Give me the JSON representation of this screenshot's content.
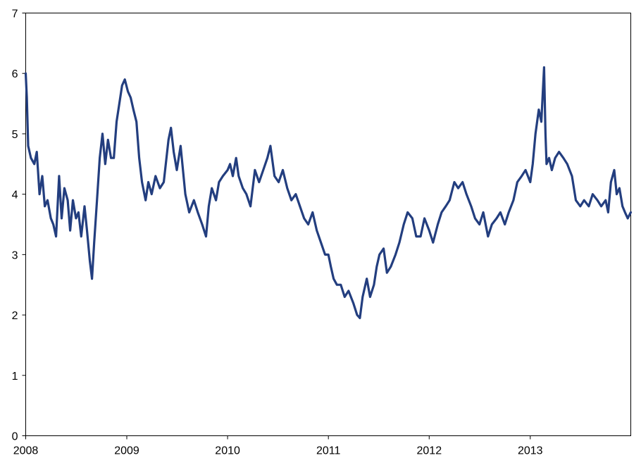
{
  "chart_data": {
    "type": "line",
    "title": "",
    "xlabel": "",
    "ylabel": "",
    "ylim": [
      0,
      7
    ],
    "xlim": [
      "2008-01-01",
      "2013-12-31"
    ],
    "y_ticks": [
      "0",
      "1",
      "2",
      "3",
      "4",
      "5",
      "6",
      "7"
    ],
    "x_ticks": [
      {
        "date": "2008-01-01",
        "label": "2008"
      },
      {
        "date": "2009-01-01",
        "label": "2009"
      },
      {
        "date": "2010-01-01",
        "label": "2010"
      },
      {
        "date": "2011-01-01",
        "label": "2011"
      },
      {
        "date": "2012-01-01",
        "label": "2012"
      },
      {
        "date": "2013-01-01",
        "label": "2013"
      }
    ],
    "grid": false,
    "legend": "none",
    "colors": {
      "series": "#233e7f"
    },
    "series": [
      {
        "x": [
          "2008-01-01",
          "2008-01-05",
          "2008-01-10",
          "2008-01-20",
          "2008-02-01",
          "2008-02-10",
          "2008-02-20",
          "2008-03-01",
          "2008-03-10",
          "2008-03-20",
          "2008-04-01",
          "2008-04-10",
          "2008-04-20",
          "2008-05-01",
          "2008-05-10",
          "2008-05-20",
          "2008-06-01",
          "2008-06-10",
          "2008-06-20",
          "2008-07-01",
          "2008-07-10",
          "2008-07-20",
          "2008-08-01",
          "2008-08-10",
          "2008-08-20",
          "2008-08-28",
          "2008-09-05",
          "2008-09-15",
          "2008-09-25",
          "2008-10-05",
          "2008-10-15",
          "2008-10-25",
          "2008-11-05",
          "2008-11-15",
          "2008-11-25",
          "2008-12-05",
          "2008-12-15",
          "2008-12-25",
          "2009-01-05",
          "2009-01-15",
          "2009-01-25",
          "2009-02-05",
          "2009-02-15",
          "2009-02-25",
          "2009-03-10",
          "2009-03-20",
          "2009-04-01",
          "2009-04-15",
          "2009-05-01",
          "2009-05-15",
          "2009-06-01",
          "2009-06-10",
          "2009-06-20",
          "2009-07-01",
          "2009-07-15",
          "2009-08-01",
          "2009-08-15",
          "2009-09-01",
          "2009-09-15",
          "2009-10-01",
          "2009-10-15",
          "2009-10-25",
          "2009-11-05",
          "2009-11-20",
          "2009-12-01",
          "2009-12-15",
          "2010-01-01",
          "2010-01-10",
          "2010-01-20",
          "2010-02-01",
          "2010-02-10",
          "2010-02-25",
          "2010-03-10",
          "2010-03-25",
          "2010-04-10",
          "2010-04-25",
          "2010-05-10",
          "2010-05-25",
          "2010-06-05",
          "2010-06-20",
          "2010-07-05",
          "2010-07-20",
          "2010-08-05",
          "2010-08-20",
          "2010-09-05",
          "2010-09-20",
          "2010-10-05",
          "2010-10-20",
          "2010-11-05",
          "2010-11-20",
          "2010-12-05",
          "2010-12-20",
          "2011-01-01",
          "2011-01-10",
          "2011-01-20",
          "2011-02-01",
          "2011-02-15",
          "2011-03-01",
          "2011-03-15",
          "2011-04-01",
          "2011-04-15",
          "2011-04-25",
          "2011-05-05",
          "2011-05-20",
          "2011-06-01",
          "2011-06-15",
          "2011-06-25",
          "2011-07-05",
          "2011-07-20",
          "2011-08-01",
          "2011-08-15",
          "2011-09-01",
          "2011-09-15",
          "2011-10-01",
          "2011-10-15",
          "2011-11-01",
          "2011-11-15",
          "2011-12-01",
          "2011-12-15",
          "2012-01-01",
          "2012-01-15",
          "2012-02-01",
          "2012-02-15",
          "2012-03-01",
          "2012-03-15",
          "2012-04-01",
          "2012-04-15",
          "2012-05-01",
          "2012-05-15",
          "2012-06-01",
          "2012-06-15",
          "2012-07-01",
          "2012-07-15",
          "2012-08-01",
          "2012-08-15",
          "2012-09-01",
          "2012-09-15",
          "2012-10-01",
          "2012-10-15",
          "2012-11-01",
          "2012-11-15",
          "2012-12-01",
          "2012-12-15",
          "2013-01-01",
          "2013-01-10",
          "2013-01-20",
          "2013-02-01",
          "2013-02-10",
          "2013-02-20",
          "2013-02-25",
          "2013-03-01",
          "2013-03-10",
          "2013-03-20",
          "2013-04-01",
          "2013-04-15",
          "2013-05-01",
          "2013-05-15",
          "2013-06-01",
          "2013-06-15",
          "2013-07-01",
          "2013-07-15",
          "2013-08-01",
          "2013-08-15",
          "2013-09-01",
          "2013-09-15",
          "2013-10-01",
          "2013-10-10",
          "2013-10-20",
          "2013-11-01",
          "2013-11-10",
          "2013-11-20",
          "2013-12-01",
          "2013-12-10",
          "2013-12-20",
          "2013-12-31"
        ],
        "y": [
          6.0,
          5.6,
          4.8,
          4.6,
          4.5,
          4.7,
          4.0,
          4.3,
          3.8,
          3.9,
          3.6,
          3.5,
          3.3,
          4.3,
          3.6,
          4.1,
          3.9,
          3.4,
          3.9,
          3.6,
          3.7,
          3.3,
          3.8,
          3.4,
          2.9,
          2.6,
          3.2,
          3.9,
          4.6,
          5.0,
          4.5,
          4.9,
          4.6,
          4.6,
          5.2,
          5.5,
          5.8,
          5.9,
          5.7,
          5.6,
          5.4,
          5.2,
          4.6,
          4.2,
          3.9,
          4.2,
          4.0,
          4.3,
          4.1,
          4.2,
          4.9,
          5.1,
          4.7,
          4.4,
          4.8,
          4.0,
          3.7,
          3.9,
          3.7,
          3.5,
          3.3,
          3.8,
          4.1,
          3.9,
          4.2,
          4.3,
          4.4,
          4.5,
          4.3,
          4.6,
          4.3,
          4.1,
          4.0,
          3.8,
          4.4,
          4.2,
          4.4,
          4.6,
          4.8,
          4.3,
          4.2,
          4.4,
          4.1,
          3.9,
          4.0,
          3.8,
          3.6,
          3.5,
          3.7,
          3.4,
          3.2,
          3.0,
          3.0,
          2.8,
          2.6,
          2.5,
          2.5,
          2.3,
          2.4,
          2.2,
          2.0,
          1.95,
          2.3,
          2.6,
          2.3,
          2.5,
          2.8,
          3.0,
          3.1,
          2.7,
          2.8,
          3.0,
          3.2,
          3.5,
          3.7,
          3.6,
          3.3,
          3.3,
          3.6,
          3.4,
          3.2,
          3.5,
          3.7,
          3.8,
          3.9,
          4.2,
          4.1,
          4.2,
          4.0,
          3.8,
          3.6,
          3.5,
          3.7,
          3.3,
          3.5,
          3.6,
          3.7,
          3.5,
          3.7,
          3.9,
          4.2,
          4.3,
          4.4,
          4.2,
          4.5,
          5.0,
          5.4,
          5.2,
          6.1,
          5.0,
          4.5,
          4.6,
          4.4,
          4.6,
          4.7,
          4.6,
          4.5,
          4.3,
          3.9,
          3.8,
          3.9,
          3.8,
          4.0,
          3.9,
          3.8,
          3.9,
          3.7,
          4.2,
          4.4,
          4.0,
          4.1,
          3.8,
          3.7,
          3.6,
          3.7
        ]
      }
    ]
  }
}
